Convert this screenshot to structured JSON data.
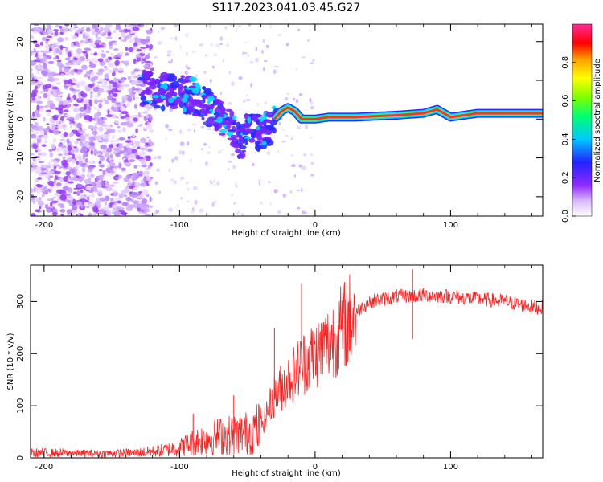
{
  "title": "S117.2023.041.03.45.G27",
  "chart_data": [
    {
      "type": "heatmap",
      "xlabel": "Height of straight line (km)",
      "ylabel": "Frequency (Hz)",
      "xlim": [
        -210,
        168
      ],
      "ylim": [
        -25,
        24.5
      ],
      "xticks": [
        -200,
        -100,
        0,
        100
      ],
      "yticks": [
        -20,
        -10,
        0,
        10,
        20
      ],
      "colorbar": {
        "label": "Normalized spectral amplitude",
        "range": [
          0,
          1
        ],
        "ticks": [
          "0.0",
          "0.2",
          "0.4",
          "0.6",
          "0.8"
        ],
        "colormap": "rainbow (white-violet-blue-cyan-green-yellow-red-pink)"
      },
      "ridge": {
        "description": "frequency track of the strongest spectral amplitude vs height",
        "points": [
          {
            "x": -125,
            "y": 8
          },
          {
            "x": -110,
            "y": 7
          },
          {
            "x": -100,
            "y": 7
          },
          {
            "x": -90,
            "y": 6
          },
          {
            "x": -80,
            "y": 3
          },
          {
            "x": -70,
            "y": 1
          },
          {
            "x": -60,
            "y": -2
          },
          {
            "x": -55,
            "y": -6
          },
          {
            "x": -50,
            "y": -2
          },
          {
            "x": -45,
            "y": -2
          },
          {
            "x": -40,
            "y": -4
          },
          {
            "x": -35,
            "y": -2
          },
          {
            "x": -30,
            "y": 0
          },
          {
            "x": -25,
            "y": 2
          },
          {
            "x": -20,
            "y": 3
          },
          {
            "x": -15,
            "y": 2
          },
          {
            "x": -10,
            "y": 0
          },
          {
            "x": 0,
            "y": 0
          },
          {
            "x": 10,
            "y": 0.5
          },
          {
            "x": 30,
            "y": 0.5
          },
          {
            "x": 60,
            "y": 1
          },
          {
            "x": 80,
            "y": 1.5
          },
          {
            "x": 90,
            "y": 2.5
          },
          {
            "x": 100,
            "y": 0.5
          },
          {
            "x": 120,
            "y": 1.5
          },
          {
            "x": 168,
            "y": 1.5
          }
        ]
      }
    },
    {
      "type": "line",
      "xlabel": "Height of straight line (km)",
      "ylabel": "SNR (10 * v/v)",
      "xlim": [
        -210,
        168
      ],
      "ylim": [
        0,
        370
      ],
      "xticks": [
        -200,
        -100,
        0,
        100
      ],
      "yticks": [
        0,
        100,
        200,
        300
      ],
      "color": "#ff2020",
      "series": [
        {
          "envelope": [
            {
              "x": -210,
              "y": 10
            },
            {
              "x": -160,
              "y": 8
            },
            {
              "x": -130,
              "y": 10
            },
            {
              "x": -110,
              "y": 15
            },
            {
              "x": -100,
              "y": 20
            },
            {
              "x": -90,
              "y": 30
            },
            {
              "x": -80,
              "y": 38
            },
            {
              "x": -70,
              "y": 42
            },
            {
              "x": -60,
              "y": 45
            },
            {
              "x": -50,
              "y": 48
            },
            {
              "x": -40,
              "y": 60
            },
            {
              "x": -30,
              "y": 120
            },
            {
              "x": -20,
              "y": 150
            },
            {
              "x": -10,
              "y": 180
            },
            {
              "x": 0,
              "y": 200
            },
            {
              "x": 10,
              "y": 220
            },
            {
              "x": 20,
              "y": 250
            },
            {
              "x": 30,
              "y": 280
            },
            {
              "x": 40,
              "y": 300
            },
            {
              "x": 60,
              "y": 310
            },
            {
              "x": 80,
              "y": 312
            },
            {
              "x": 100,
              "y": 310
            },
            {
              "x": 120,
              "y": 305
            },
            {
              "x": 140,
              "y": 300
            },
            {
              "x": 160,
              "y": 290
            },
            {
              "x": 168,
              "y": 288
            }
          ],
          "spikes": [
            {
              "x": -90,
              "y": 85
            },
            {
              "x": -60,
              "y": 120
            },
            {
              "x": -30,
              "y": 250
            },
            {
              "x": -10,
              "y": 335
            },
            {
              "x": 72,
              "y": 362
            },
            {
              "x": 72,
              "y": 228
            }
          ]
        }
      ]
    }
  ]
}
